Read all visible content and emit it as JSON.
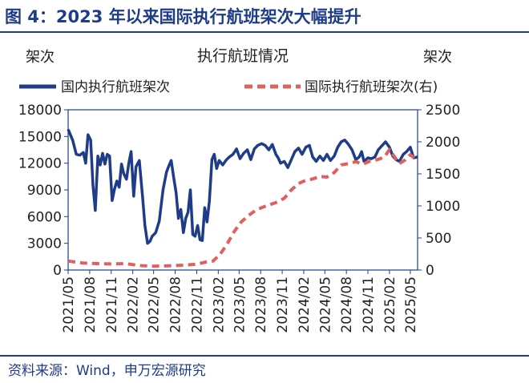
{
  "figure_title": "图 4：2023 年以来国际执行航班架次大幅提升",
  "source": "资料来源：Wind，申万宏源研究",
  "colors": {
    "domestic": "#1f3c88",
    "international": "#e06060",
    "frame": "#1f3c88"
  },
  "chart_data": {
    "type": "line",
    "title": "执行航班情况",
    "y_left_unit": "架次",
    "y_right_unit": "架次",
    "y_left_ticks": [
      "0",
      "3000",
      "6000",
      "9000",
      "12000",
      "15000",
      "18000"
    ],
    "y_right_ticks": [
      "0",
      "500",
      "1000",
      "1500",
      "2000",
      "2500"
    ],
    "ylim_left": [
      0,
      18000
    ],
    "ylim_right": [
      0,
      2500
    ],
    "x_tick_labels": [
      "2021/05",
      "2021/08",
      "2021/11",
      "2022/02",
      "2022/05",
      "2022/08",
      "2022/11",
      "2023/02",
      "2023/05",
      "2023/08",
      "2023/11",
      "2024/02",
      "2024/05",
      "2024/08",
      "2024/11",
      "2025/02",
      "2025/05"
    ],
    "legend_position": "top",
    "grid": false,
    "series": [
      {
        "name": "国内执行航班架次",
        "axis": "left",
        "style": "solid",
        "points": [
          [
            "2021-05-01",
            15800
          ],
          [
            "2021-05-20",
            14600
          ],
          [
            "2021-06-05",
            13000
          ],
          [
            "2021-06-20",
            12900
          ],
          [
            "2021-07-05",
            13200
          ],
          [
            "2021-07-15",
            12000
          ],
          [
            "2021-07-25",
            15200
          ],
          [
            "2021-08-05",
            14600
          ],
          [
            "2021-08-15",
            9500
          ],
          [
            "2021-08-25",
            6700
          ],
          [
            "2021-09-05",
            12800
          ],
          [
            "2021-09-15",
            11800
          ],
          [
            "2021-09-25",
            13100
          ],
          [
            "2021-10-05",
            11900
          ],
          [
            "2021-10-15",
            13000
          ],
          [
            "2021-10-25",
            12800
          ],
          [
            "2021-11-05",
            7800
          ],
          [
            "2021-11-15",
            9100
          ],
          [
            "2021-11-25",
            10000
          ],
          [
            "2021-12-05",
            9300
          ],
          [
            "2021-12-15",
            11900
          ],
          [
            "2021-12-25",
            10800
          ],
          [
            "2022-01-05",
            10200
          ],
          [
            "2022-01-15",
            12000
          ],
          [
            "2022-01-25",
            13300
          ],
          [
            "2022-02-05",
            8300
          ],
          [
            "2022-02-15",
            11600
          ],
          [
            "2022-03-01",
            12300
          ],
          [
            "2022-03-15",
            8200
          ],
          [
            "2022-03-25",
            5000
          ],
          [
            "2022-04-05",
            3000
          ],
          [
            "2022-04-15",
            3200
          ],
          [
            "2022-04-25",
            3800
          ],
          [
            "2022-05-10",
            4200
          ],
          [
            "2022-05-25",
            5500
          ],
          [
            "2022-06-10",
            9000
          ],
          [
            "2022-06-25",
            11000
          ],
          [
            "2022-07-05",
            11700
          ],
          [
            "2022-07-15",
            12300
          ],
          [
            "2022-07-25",
            10500
          ],
          [
            "2022-08-05",
            8700
          ],
          [
            "2022-08-15",
            5800
          ],
          [
            "2022-08-25",
            6800
          ],
          [
            "2022-09-05",
            4200
          ],
          [
            "2022-09-15",
            5800
          ],
          [
            "2022-09-25",
            6500
          ],
          [
            "2022-10-05",
            9000
          ],
          [
            "2022-10-15",
            4000
          ],
          [
            "2022-10-25",
            3800
          ],
          [
            "2022-11-05",
            5000
          ],
          [
            "2022-11-15",
            3400
          ],
          [
            "2022-11-25",
            3300
          ],
          [
            "2022-12-05",
            7000
          ],
          [
            "2022-12-15",
            5400
          ],
          [
            "2022-12-25",
            7700
          ],
          [
            "2023-01-05",
            12400
          ],
          [
            "2023-01-15",
            13000
          ],
          [
            "2023-01-25",
            11400
          ],
          [
            "2023-02-05",
            12300
          ],
          [
            "2023-02-20",
            11800
          ],
          [
            "2023-03-05",
            12300
          ],
          [
            "2023-03-20",
            12700
          ],
          [
            "2023-04-05",
            13000
          ],
          [
            "2023-04-20",
            13600
          ],
          [
            "2023-05-05",
            12500
          ],
          [
            "2023-05-20",
            13100
          ],
          [
            "2023-06-05",
            13500
          ],
          [
            "2023-06-20",
            12400
          ],
          [
            "2023-07-05",
            13600
          ],
          [
            "2023-07-20",
            14000
          ],
          [
            "2023-08-05",
            14200
          ],
          [
            "2023-08-20",
            14000
          ],
          [
            "2023-09-05",
            13500
          ],
          [
            "2023-09-20",
            14100
          ],
          [
            "2023-10-05",
            13000
          ],
          [
            "2023-10-15",
            12600
          ],
          [
            "2023-10-25",
            12000
          ],
          [
            "2023-11-10",
            12200
          ],
          [
            "2023-11-25",
            11500
          ],
          [
            "2023-12-10",
            12400
          ],
          [
            "2023-12-25",
            13300
          ],
          [
            "2024-01-10",
            13700
          ],
          [
            "2024-01-25",
            13000
          ],
          [
            "2024-02-10",
            13800
          ],
          [
            "2024-02-25",
            14000
          ],
          [
            "2024-03-10",
            12700
          ],
          [
            "2024-03-25",
            12200
          ],
          [
            "2024-04-10",
            12800
          ],
          [
            "2024-04-25",
            12300
          ],
          [
            "2024-05-10",
            13000
          ],
          [
            "2024-05-25",
            12300
          ],
          [
            "2024-06-10",
            12800
          ],
          [
            "2024-06-25",
            13800
          ],
          [
            "2024-07-10",
            14400
          ],
          [
            "2024-07-25",
            14600
          ],
          [
            "2024-08-10",
            14100
          ],
          [
            "2024-08-25",
            13500
          ],
          [
            "2024-09-10",
            12400
          ],
          [
            "2024-09-25",
            12700
          ],
          [
            "2024-10-05",
            13300
          ],
          [
            "2024-10-15",
            12200
          ],
          [
            "2024-11-01",
            12600
          ],
          [
            "2024-11-15",
            12500
          ],
          [
            "2024-12-01",
            12700
          ],
          [
            "2024-12-15",
            13500
          ],
          [
            "2025-01-01",
            14000
          ],
          [
            "2025-01-15",
            14400
          ],
          [
            "2025-02-01",
            13800
          ],
          [
            "2025-02-15",
            12800
          ],
          [
            "2025-03-01",
            12400
          ],
          [
            "2025-03-15",
            12200
          ],
          [
            "2025-04-01",
            13000
          ],
          [
            "2025-04-15",
            13300
          ],
          [
            "2025-05-01",
            13800
          ],
          [
            "2025-05-15",
            12600
          ],
          [
            "2025-06-01",
            12700
          ]
        ]
      },
      {
        "name": "国际执行航班架次(右)",
        "axis": "right",
        "style": "dashed",
        "points": [
          [
            "2021-05-01",
            140
          ],
          [
            "2021-07-01",
            110
          ],
          [
            "2021-09-01",
            100
          ],
          [
            "2021-11-01",
            95
          ],
          [
            "2022-01-01",
            100
          ],
          [
            "2022-03-01",
            70
          ],
          [
            "2022-05-01",
            60
          ],
          [
            "2022-07-01",
            65
          ],
          [
            "2022-09-01",
            75
          ],
          [
            "2022-11-01",
            90
          ],
          [
            "2022-12-15",
            130
          ],
          [
            "2023-01-10",
            140
          ],
          [
            "2023-02-10",
            250
          ],
          [
            "2023-03-10",
            400
          ],
          [
            "2023-04-10",
            600
          ],
          [
            "2023-05-10",
            750
          ],
          [
            "2023-06-10",
            850
          ],
          [
            "2023-07-10",
            930
          ],
          [
            "2023-08-10",
            980
          ],
          [
            "2023-09-10",
            1020
          ],
          [
            "2023-10-10",
            1060
          ],
          [
            "2023-11-10",
            1120
          ],
          [
            "2023-12-10",
            1250
          ],
          [
            "2024-01-10",
            1350
          ],
          [
            "2024-02-10",
            1400
          ],
          [
            "2024-03-10",
            1420
          ],
          [
            "2024-04-10",
            1460
          ],
          [
            "2024-05-10",
            1450
          ],
          [
            "2024-06-10",
            1520
          ],
          [
            "2024-07-10",
            1640
          ],
          [
            "2024-08-10",
            1660
          ],
          [
            "2024-09-10",
            1690
          ],
          [
            "2024-10-10",
            1650
          ],
          [
            "2024-11-10",
            1700
          ],
          [
            "2024-12-10",
            1720
          ],
          [
            "2025-01-10",
            1760
          ],
          [
            "2025-02-01",
            1880
          ],
          [
            "2025-02-20",
            1780
          ],
          [
            "2025-03-15",
            1660
          ],
          [
            "2025-04-10",
            1720
          ],
          [
            "2025-05-01",
            1800
          ],
          [
            "2025-06-01",
            1700
          ]
        ]
      }
    ]
  }
}
